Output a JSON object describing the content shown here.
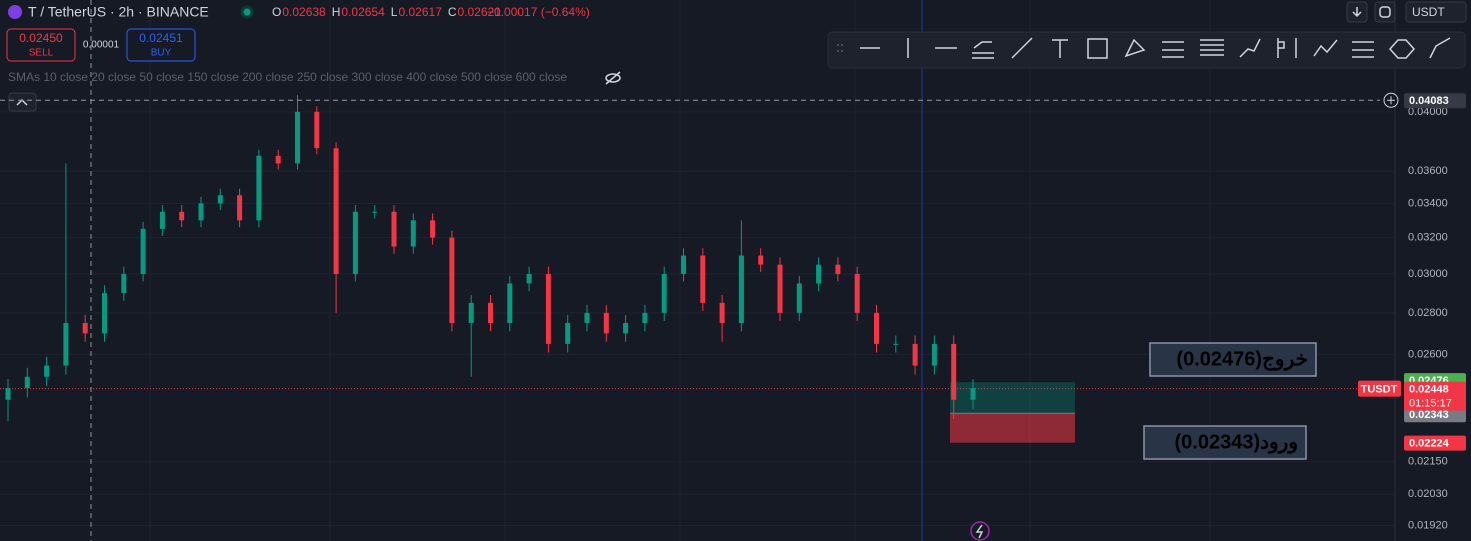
{
  "header": {
    "symbol": "T / TetherUS · 2h · BINANCE",
    "ohlc": [
      {
        "key": "O",
        "value": "0.02638"
      },
      {
        "key": "H",
        "value": "0.02654"
      },
      {
        "key": "L",
        "value": "0.02617"
      },
      {
        "key": "C",
        "value": "0.02621"
      }
    ],
    "change": "−0.00017 (−0.64%)",
    "currency": "USDT"
  },
  "trade": {
    "sell_price": "0.02450",
    "sell_label": "SELL",
    "spread": "0.00001",
    "buy_price": "0.02451",
    "buy_label": "BUY"
  },
  "indicator": "SMAs 10 close 20 close 50 close 150 close 200 close 250 close 300 close 400 close 500 close 600 close",
  "chart_data": {
    "type": "candlestick",
    "log_scale": true,
    "grid": true,
    "up_color": "#089981",
    "down_color": "#f23645",
    "open": [
      0.024,
      0.0245,
      0.025,
      0.0255,
      0.0275,
      0.027,
      0.029,
      0.03,
      0.0325,
      0.0335,
      0.033,
      0.034,
      0.0345,
      0.033,
      0.037,
      0.0365,
      0.04,
      0.0375,
      0.03,
      0.0335,
      0.0335,
      0.0315,
      0.033,
      0.032,
      0.0275,
      0.0285,
      0.0275,
      0.0295,
      0.03,
      0.0265,
      0.0275,
      0.028,
      0.027,
      0.0275,
      0.028,
      0.03,
      0.031,
      0.0285,
      0.0275,
      0.031,
      0.0305,
      0.028,
      0.0295,
      0.0305,
      0.03,
      0.028,
      0.0265,
      0.0265,
      0.0255,
      0.0265,
      0.024
    ],
    "high": [
      0.0249,
      0.0254,
      0.0259,
      0.0365,
      0.0279,
      0.0294,
      0.0304,
      0.0329,
      0.0339,
      0.0339,
      0.0344,
      0.0349,
      0.0349,
      0.0374,
      0.0374,
      0.0412,
      0.0404,
      0.0379,
      0.0339,
      0.0339,
      0.0339,
      0.0334,
      0.0334,
      0.0324,
      0.0289,
      0.0289,
      0.0299,
      0.0304,
      0.0304,
      0.0279,
      0.0284,
      0.0284,
      0.0279,
      0.0284,
      0.0304,
      0.0314,
      0.0314,
      0.0289,
      0.033,
      0.0314,
      0.0309,
      0.0299,
      0.0309,
      0.0309,
      0.0304,
      0.0284,
      0.0269,
      0.0269,
      0.0269,
      0.0269,
      0.0249
    ],
    "low": [
      0.0231,
      0.0241,
      0.0246,
      0.0251,
      0.0266,
      0.0266,
      0.0286,
      0.0296,
      0.0321,
      0.0326,
      0.0326,
      0.0336,
      0.0326,
      0.0326,
      0.0361,
      0.0361,
      0.0371,
      0.028,
      0.0296,
      0.0331,
      0.0311,
      0.0311,
      0.0316,
      0.0271,
      0.025,
      0.0271,
      0.0271,
      0.0291,
      0.0261,
      0.0261,
      0.0271,
      0.0266,
      0.0266,
      0.0271,
      0.0276,
      0.0296,
      0.0281,
      0.0266,
      0.0271,
      0.0301,
      0.0276,
      0.0276,
      0.0291,
      0.0296,
      0.0276,
      0.0261,
      0.0261,
      0.0251,
      0.0251,
      0.0232,
      0.0236
    ],
    "close": [
      0.0245,
      0.025,
      0.0255,
      0.0275,
      0.027,
      0.029,
      0.03,
      0.0325,
      0.0335,
      0.033,
      0.034,
      0.0345,
      0.033,
      0.037,
      0.0365,
      0.04,
      0.0375,
      0.03,
      0.0335,
      0.0335,
      0.0315,
      0.033,
      0.032,
      0.0275,
      0.0285,
      0.0275,
      0.0295,
      0.03,
      0.0265,
      0.0275,
      0.028,
      0.027,
      0.0275,
      0.028,
      0.03,
      0.031,
      0.0285,
      0.0275,
      0.031,
      0.0305,
      0.028,
      0.0295,
      0.0305,
      0.03,
      0.028,
      0.0265,
      0.0265,
      0.0255,
      0.0265,
      0.024,
      0.0245
    ],
    "ylim": [
      0.01868,
      0.04878
    ],
    "yticks": [
      {
        "value": 0.04,
        "label": "0.04000"
      },
      {
        "value": 0.036,
        "label": "0.03600"
      },
      {
        "value": 0.034,
        "label": "0.03400"
      },
      {
        "value": 0.032,
        "label": "0.03200"
      },
      {
        "value": 0.03,
        "label": "0.03000"
      },
      {
        "value": 0.028,
        "label": "0.02800"
      },
      {
        "value": 0.026,
        "label": "0.02600"
      },
      {
        "value": 0.0215,
        "label": "0.02150"
      },
      {
        "value": 0.0203,
        "label": "0.02030"
      },
      {
        "value": 0.0192,
        "label": "0.01920"
      }
    ],
    "crosshair_price": 0.04083,
    "last_price": {
      "value": 0.02448,
      "symbol": "TUSDT",
      "countdown": "01:15:17"
    },
    "position": {
      "target": 0.02476,
      "entry": 0.02343,
      "stop": 0.02224
    },
    "annotations": {
      "exit": "خروج(0.02476)",
      "entry": "ورود(0.02343)"
    }
  }
}
